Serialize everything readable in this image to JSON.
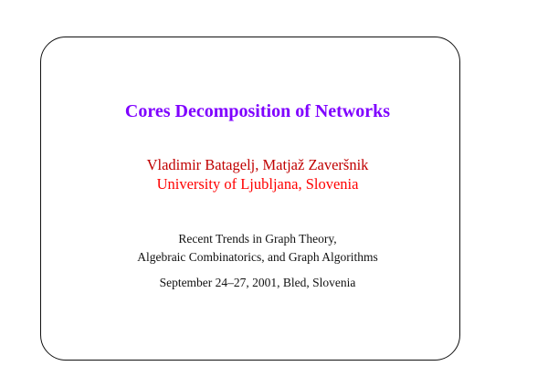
{
  "slide": {
    "title": "Cores Decomposition of Networks",
    "authors": "Vladimir Batagelj, Matjaž Zaveršnik",
    "affiliation": "University of Ljubljana, Slovenia",
    "conference_line1": "Recent Trends in Graph Theory,",
    "conference_line2": "Algebraic Combinatorics, and Graph Algorithms",
    "date_place": "September 24–27, 2001, Bled, Slovenia"
  },
  "colors": {
    "title": "#7f00ff",
    "authors": "#c00000",
    "affiliation": "#ff0000",
    "body": "#111111"
  }
}
